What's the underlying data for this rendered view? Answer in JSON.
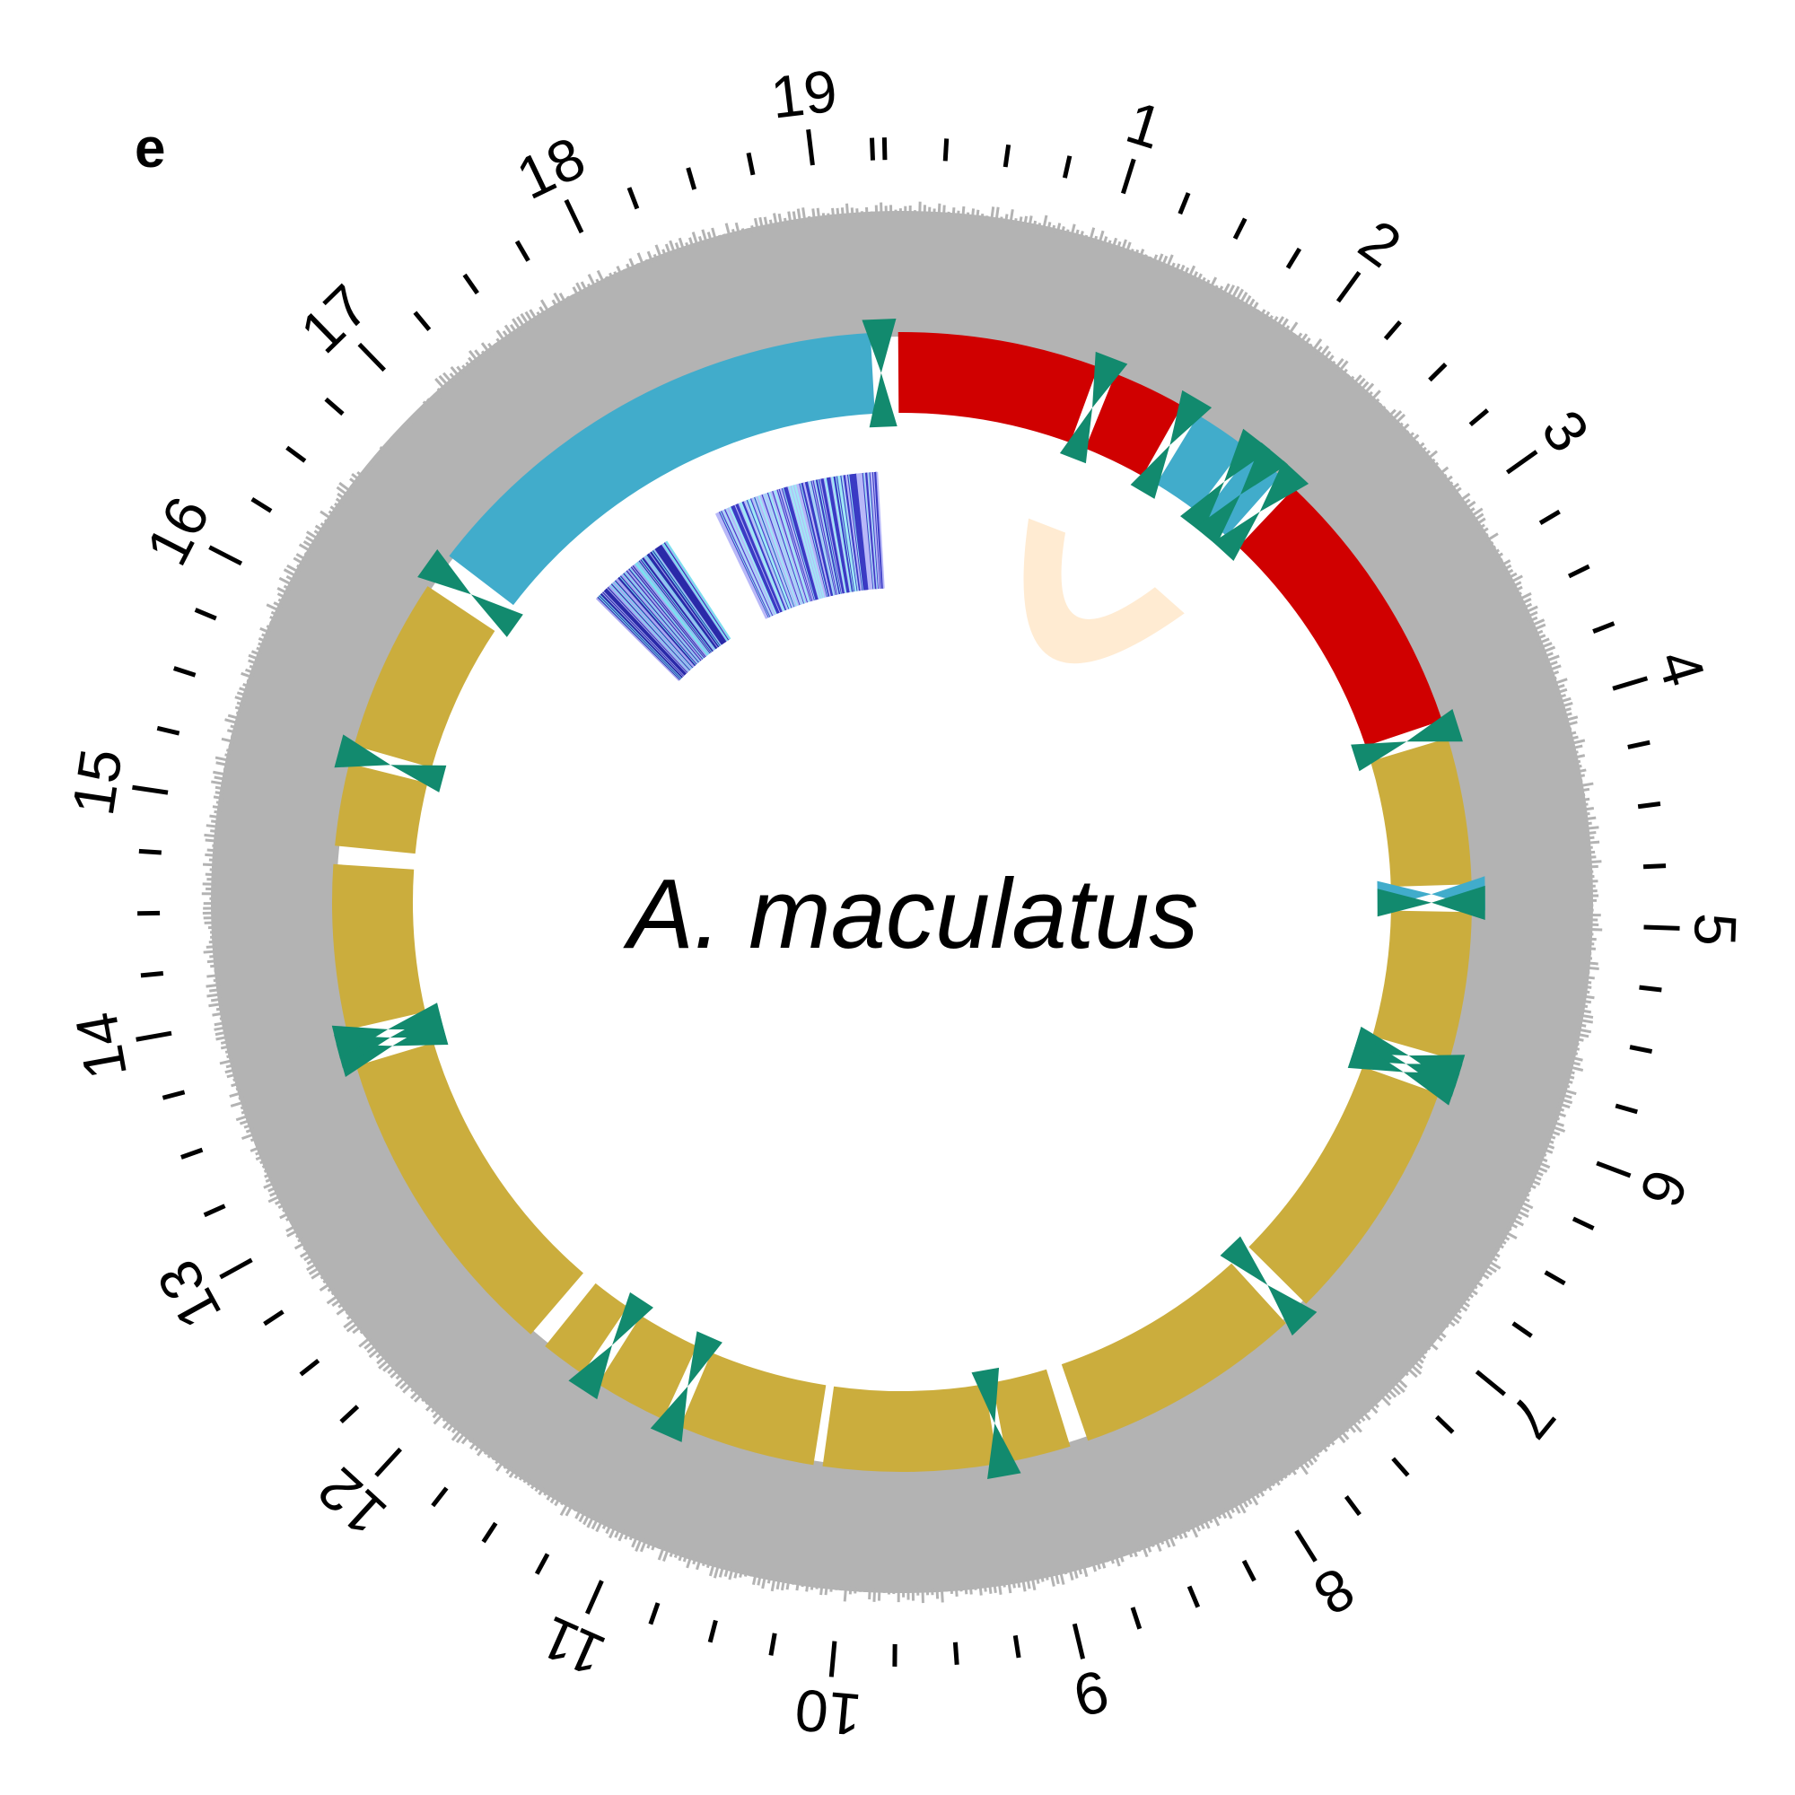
{
  "figure": {
    "panel_label": "e",
    "species_label": "A. maculatus"
  },
  "chart_data": {
    "type": "circular-genome",
    "scale": {
      "min": 0,
      "max": 19.3,
      "major_ticks": [
        1,
        2,
        3,
        4,
        5,
        6,
        7,
        8,
        9,
        10,
        11,
        12,
        13,
        14,
        15,
        16,
        17,
        18,
        19
      ],
      "minor_step": 0.25
    },
    "tick_labels": [
      "1",
      "2",
      "3",
      "4",
      "5",
      "6",
      "7",
      "8",
      "9",
      "10",
      "11",
      "12",
      "13",
      "14",
      "15",
      "16",
      "17",
      "18",
      "19"
    ],
    "segments": [
      {
        "start": 0.05,
        "end": 1.15,
        "color": "#D00000"
      },
      {
        "start": 1.25,
        "end": 1.65,
        "color": "#D00000"
      },
      {
        "start": 1.75,
        "end": 2.05,
        "color": "#41ACCB"
      },
      {
        "start": 2.1,
        "end": 2.3,
        "color": "#41ACCB"
      },
      {
        "start": 2.4,
        "end": 3.9,
        "color": "#D00000"
      },
      {
        "start": 4.0,
        "end": 4.8,
        "color": "#CBAD3D"
      },
      {
        "start": 4.95,
        "end": 5.75,
        "color": "#CBAD3D"
      },
      {
        "start": 5.95,
        "end": 7.3,
        "color": "#CBAD3D"
      },
      {
        "start": 7.45,
        "end": 8.7,
        "color": "#CBAD3D"
      },
      {
        "start": 8.8,
        "end": 9.15,
        "color": "#CBAD3D"
      },
      {
        "start": 9.2,
        "end": 10.15,
        "color": "#CBAD3D"
      },
      {
        "start": 10.2,
        "end": 10.95,
        "color": "#CBAD3D"
      },
      {
        "start": 11.05,
        "end": 11.45,
        "color": "#CBAD3D"
      },
      {
        "start": 11.55,
        "end": 11.8,
        "color": "#CBAD3D"
      },
      {
        "start": 11.9,
        "end": 13.65,
        "color": "#CBAD3D"
      },
      {
        "start": 13.85,
        "end": 14.75,
        "color": "#CBAD3D"
      },
      {
        "start": 14.85,
        "end": 15.3,
        "color": "#CBAD3D"
      },
      {
        "start": 15.4,
        "end": 16.35,
        "color": "#CBAD3D"
      },
      {
        "start": 16.55,
        "end": 19.2,
        "color": "#41ACCB"
      }
    ],
    "markers": [
      {
        "pos": 1.2,
        "color": "#128A6E"
      },
      {
        "pos": 1.7,
        "color": "#128A6E"
      },
      {
        "pos": 2.08,
        "color": "#128A6E"
      },
      {
        "pos": 2.2,
        "color": "#128A6E"
      },
      {
        "pos": 2.35,
        "color": "#128A6E"
      },
      {
        "pos": 3.95,
        "color": "#128A6E"
      },
      {
        "pos": 4.85,
        "color": "#41ACCB"
      },
      {
        "pos": 4.9,
        "color": "#128A6E"
      },
      {
        "pos": 5.8,
        "color": "#128A6E"
      },
      {
        "pos": 5.85,
        "color": "#128A6E"
      },
      {
        "pos": 5.9,
        "color": "#128A6E"
      },
      {
        "pos": 7.38,
        "color": "#128A6E"
      },
      {
        "pos": 9.18,
        "color": "#128A6E"
      },
      {
        "pos": 11.0,
        "color": "#128A6E"
      },
      {
        "pos": 11.5,
        "color": "#128A6E"
      },
      {
        "pos": 13.7,
        "color": "#128A6E"
      },
      {
        "pos": 13.75,
        "color": "#128A6E"
      },
      {
        "pos": 13.8,
        "color": "#128A6E"
      },
      {
        "pos": 15.35,
        "color": "#128A6E"
      },
      {
        "pos": 16.45,
        "color": "#128A6E"
      },
      {
        "pos": 19.25,
        "color": "#128A6E"
      }
    ],
    "links": [
      {
        "a_start": 1.05,
        "a_end": 1.35,
        "b_start": 2.15,
        "b_end": 2.45,
        "color": "#FFEBD2"
      }
    ],
    "heat_blocks": [
      {
        "start": 16.95,
        "end": 17.6,
        "colors": [
          "#2A2AA8",
          "#7CE0F0",
          "#A6A6F0"
        ]
      },
      {
        "start": 18.0,
        "end": 19.2,
        "colors": [
          "#3B3BC4",
          "#9FE8F5",
          "#B8B8F8"
        ]
      }
    ],
    "colors": {
      "density_track": "#B3B3B3",
      "axis": "#000000",
      "seg_red": "#D00000",
      "seg_blue": "#41ACCB",
      "seg_gold": "#CBAD3D",
      "marker": "#128A6E"
    }
  }
}
